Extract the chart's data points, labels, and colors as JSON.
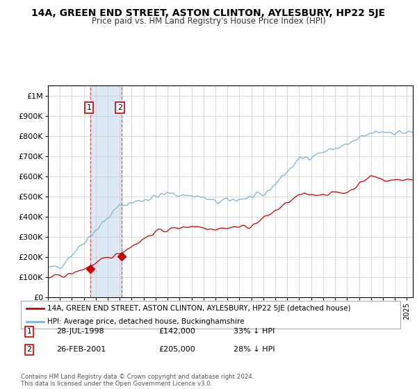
{
  "title": "14A, GREEN END STREET, ASTON CLINTON, AYLESBURY, HP22 5JE",
  "subtitle": "Price paid vs. HM Land Registry's House Price Index (HPI)",
  "ylim": [
    0,
    1050000
  ],
  "xlim_start": 1995.0,
  "xlim_end": 2025.5,
  "yticks": [
    0,
    100000,
    200000,
    300000,
    400000,
    500000,
    600000,
    700000,
    800000,
    900000,
    1000000
  ],
  "ytick_labels": [
    "£0",
    "£100K",
    "£200K",
    "£300K",
    "£400K",
    "£500K",
    "£600K",
    "£700K",
    "£800K",
    "£900K",
    "£1M"
  ],
  "transaction1_date": 1998.57,
  "transaction1_price": 142000,
  "transaction1_label": "1",
  "transaction2_date": 2001.15,
  "transaction2_price": 205000,
  "transaction2_label": "2",
  "shade_color": "#dce9f5",
  "vline_color": "#e05050",
  "point_color": "#cc0000",
  "hpi_line_color": "#7ab3d9",
  "price_line_color": "#cc0000",
  "legend_line1": "14A, GREEN END STREET, ASTON CLINTON, AYLESBURY, HP22 5JE (detached house)",
  "legend_line2": "HPI: Average price, detached house, Buckinghamshire",
  "table_row1": [
    "1",
    "28-JUL-1998",
    "£142,000",
    "33% ↓ HPI"
  ],
  "table_row2": [
    "2",
    "26-FEB-2001",
    "£205,000",
    "28% ↓ HPI"
  ],
  "footnote": "Contains HM Land Registry data © Crown copyright and database right 2024.\nThis data is licensed under the Open Government Licence v3.0.",
  "background_color": "#ffffff",
  "grid_color": "#cccccc"
}
